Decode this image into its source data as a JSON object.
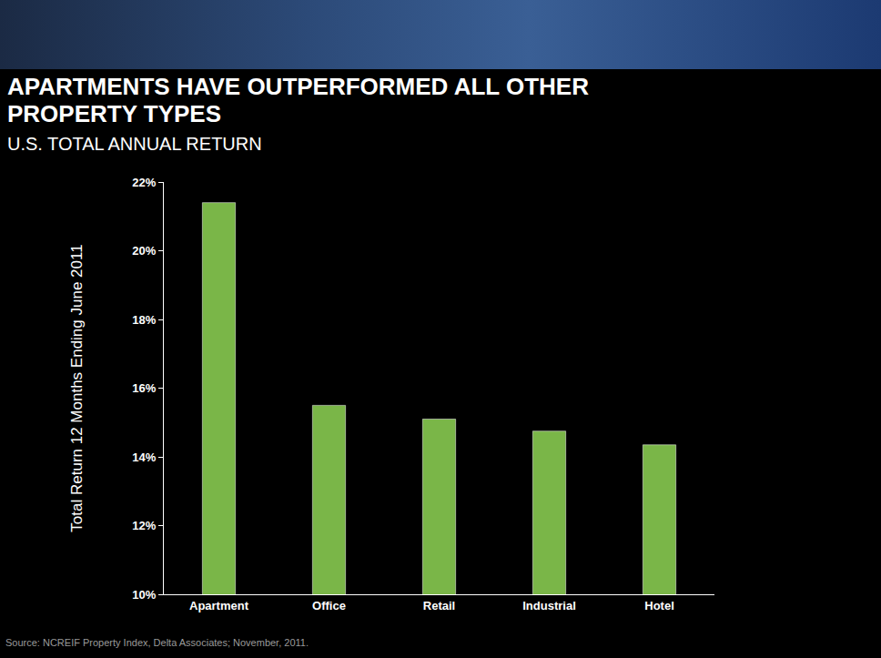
{
  "chart_data": {
    "type": "bar",
    "title": "APARTMENTS HAVE OUTPERFORMED ALL OTHER PROPERTY TYPES",
    "subtitle": "U.S. TOTAL ANNUAL RETURN",
    "y_label": "Total Return 12 Months Ending June 2011",
    "categories": [
      "Apartment",
      "Office",
      "Retail",
      "Industrial",
      "Hotel"
    ],
    "values": [
      21.4,
      15.5,
      15.1,
      14.75,
      14.35
    ],
    "color": "#7ab648",
    "ylim": [
      10,
      22
    ],
    "yticks": [
      {
        "value": 10,
        "label": "10%"
      },
      {
        "value": 12,
        "label": "12%"
      },
      {
        "value": 14,
        "label": "14%"
      },
      {
        "value": 16,
        "label": "16%"
      },
      {
        "value": 18,
        "label": "18%"
      },
      {
        "value": 20,
        "label": "20%"
      },
      {
        "value": 22,
        "label": "22%"
      }
    ],
    "grid": false,
    "annotations": [
      "Source: NCREIF Property Index, Delta Associates; November, 2011."
    ]
  }
}
